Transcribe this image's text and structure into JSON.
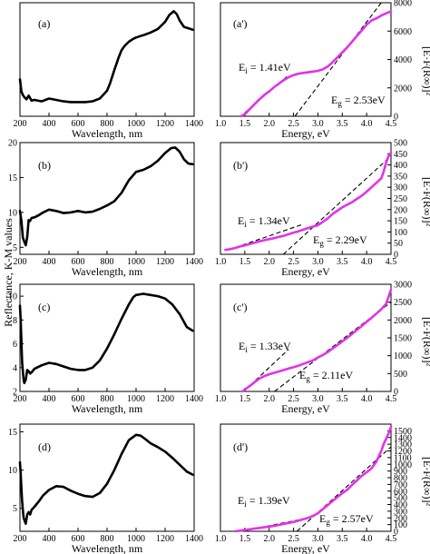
{
  "figure": {
    "left_y_title": "Reflectance, K-M values",
    "right_y_title": "[E·F(R∞)]²"
  },
  "chart_data": [
    {
      "id": "a",
      "type": "line",
      "label": "(a)",
      "xlabel": "Wavelength, nm",
      "ylabel": "",
      "xlim": [
        200,
        1400
      ],
      "ylim": [
        0,
        16
      ],
      "xticks": [
        200,
        400,
        600,
        800,
        1000,
        1200,
        1400
      ],
      "yticks": [],
      "series": [
        {
          "color": "#000000",
          "x": [
            200,
            210,
            220,
            230,
            245,
            260,
            280,
            300,
            350,
            400,
            450,
            500,
            550,
            600,
            650,
            700,
            750,
            800,
            820,
            850,
            880,
            900,
            920,
            950,
            980,
            1000,
            1030,
            1060,
            1100,
            1150,
            1200,
            1230,
            1260,
            1280,
            1300,
            1330,
            1360,
            1390
          ],
          "y": [
            5.2,
            3.5,
            3.0,
            2.7,
            2.4,
            2.9,
            2.2,
            2.3,
            2.1,
            2.5,
            2.3,
            2.1,
            2.0,
            2.0,
            2.0,
            2.1,
            2.5,
            3.6,
            4.6,
            6.5,
            8.3,
            9.3,
            9.9,
            10.5,
            10.9,
            11.1,
            11.3,
            11.5,
            11.8,
            12.3,
            13.3,
            14.3,
            14.8,
            14.4,
            13.5,
            12.6,
            12.4,
            12.2
          ]
        }
      ]
    },
    {
      "id": "a2",
      "type": "line",
      "label": "(a')",
      "xlabel": "Energy, eV",
      "ylabel": "",
      "xlim": [
        1.0,
        4.5
      ],
      "ylim": [
        0,
        8000
      ],
      "xticks": [
        1.0,
        1.5,
        2.0,
        2.5,
        3.0,
        3.5,
        4.0,
        4.5
      ],
      "yticks": [
        0,
        2000,
        4000,
        6000,
        8000
      ],
      "series": [
        {
          "color": "#e233e8",
          "x": [
            1.42,
            1.5,
            1.6,
            1.7,
            1.8,
            1.9,
            2.0,
            2.1,
            2.2,
            2.3,
            2.4,
            2.5,
            2.6,
            2.7,
            2.8,
            2.9,
            3.0,
            3.1,
            3.2,
            3.3,
            3.4,
            3.5,
            3.6,
            3.7,
            3.8,
            3.9,
            4.0,
            4.1,
            4.2,
            4.3,
            4.4,
            4.5
          ],
          "y": [
            0,
            150,
            500,
            850,
            1200,
            1500,
            1750,
            2050,
            2300,
            2550,
            2750,
            2900,
            3000,
            3050,
            3100,
            3150,
            3200,
            3300,
            3500,
            3800,
            4150,
            4500,
            4850,
            5250,
            5650,
            6050,
            6450,
            6750,
            6900,
            7100,
            7250,
            7400
          ]
        }
      ],
      "fit_lines": [
        {
          "x": [
            1.5,
            2.4
          ],
          "y": [
            250,
            2900
          ]
        },
        {
          "x": [
            2.53,
            4.3
          ],
          "y": [
            0,
            8000
          ]
        }
      ],
      "annotations": [
        {
          "text": "E",
          "sub": "i",
          "rest": " = 1.41eV"
        },
        {
          "text": "E",
          "sub": "g",
          "rest": " = 2.53eV"
        }
      ]
    },
    {
      "id": "b",
      "type": "line",
      "label": "(b)",
      "xlabel": "Wavelength, nm",
      "ylabel": "",
      "xlim": [
        200,
        1400
      ],
      "ylim": [
        4,
        20
      ],
      "xticks": [
        200,
        400,
        600,
        800,
        1000,
        1200,
        1400
      ],
      "yticks": [
        5,
        10,
        15,
        20
      ],
      "series": [
        {
          "color": "#000000",
          "x": [
            200,
            210,
            220,
            230,
            240,
            250,
            260,
            270,
            280,
            300,
            330,
            360,
            400,
            450,
            500,
            550,
            600,
            650,
            700,
            750,
            800,
            850,
            900,
            950,
            1000,
            1050,
            1100,
            1150,
            1200,
            1240,
            1270,
            1300,
            1330,
            1360,
            1390
          ],
          "y": [
            10.2,
            8.8,
            6.4,
            5.8,
            5.3,
            6.5,
            8.9,
            8.8,
            9.2,
            9.3,
            9.6,
            10.0,
            10.4,
            10.2,
            9.9,
            10.0,
            10.2,
            10.0,
            10.1,
            10.5,
            11.0,
            11.6,
            12.8,
            14.6,
            15.8,
            16.1,
            16.6,
            17.4,
            18.5,
            19.2,
            19.3,
            18.7,
            17.6,
            17.0,
            16.9
          ]
        }
      ]
    },
    {
      "id": "b2",
      "type": "line",
      "label": "(b')",
      "xlabel": "Energy, eV",
      "ylabel": "",
      "xlim": [
        1.0,
        4.5
      ],
      "ylim": [
        0,
        500
      ],
      "xticks": [
        1.0,
        1.5,
        2.0,
        2.5,
        3.0,
        3.5,
        4.0,
        4.5
      ],
      "yticks": [
        0,
        50,
        100,
        150,
        200,
        250,
        300,
        350,
        400,
        450,
        500
      ],
      "series": [
        {
          "color": "#e233e8",
          "x": [
            1.1,
            1.2,
            1.3,
            1.4,
            1.5,
            1.6,
            1.7,
            1.8,
            1.9,
            2.0,
            2.1,
            2.2,
            2.3,
            2.4,
            2.5,
            2.6,
            2.7,
            2.8,
            2.9,
            3.0,
            3.1,
            3.2,
            3.3,
            3.4,
            3.5,
            3.6,
            3.7,
            3.8,
            3.9,
            4.0,
            4.1,
            4.2,
            4.3,
            4.35,
            4.4,
            4.45,
            4.5
          ],
          "y": [
            20,
            23,
            28,
            35,
            40,
            46,
            52,
            58,
            63,
            68,
            72,
            78,
            83,
            90,
            97,
            103,
            110,
            118,
            124,
            130,
            145,
            160,
            180,
            195,
            210,
            222,
            233,
            248,
            262,
            280,
            300,
            320,
            340,
            370,
            410,
            440,
            455
          ]
        }
      ],
      "fit_lines": [
        {
          "x": [
            1.3,
            2.7
          ],
          "y": [
            30,
            135
          ]
        },
        {
          "x": [
            2.29,
            4.5
          ],
          "y": [
            0,
            440
          ]
        }
      ],
      "annotations": [
        {
          "text": "E",
          "sub": "i",
          "rest": " = 1.34eV"
        },
        {
          "text": "E",
          "sub": "g",
          "rest": " = 2.29eV"
        }
      ]
    },
    {
      "id": "c",
      "type": "line",
      "label": "(c)",
      "xlabel": "Wavelength, nm",
      "ylabel": "",
      "xlim": [
        200,
        1400
      ],
      "ylim": [
        2,
        11
      ],
      "xticks": [
        200,
        400,
        600,
        800,
        1000,
        1200,
        1400
      ],
      "yticks": [
        2,
        4,
        6,
        8,
        10
      ],
      "series": [
        {
          "color": "#000000",
          "x": [
            200,
            205,
            210,
            215,
            220,
            225,
            230,
            240,
            250,
            260,
            270,
            280,
            300,
            350,
            400,
            450,
            500,
            550,
            600,
            650,
            700,
            750,
            800,
            850,
            900,
            950,
            980,
            1000,
            1050,
            1100,
            1150,
            1200,
            1250,
            1300,
            1350,
            1390
          ],
          "y": [
            9.2,
            8.0,
            6.2,
            4.4,
            3.7,
            3.0,
            2.7,
            3.0,
            3.8,
            3.7,
            3.5,
            3.6,
            3.9,
            4.2,
            4.4,
            4.3,
            4.1,
            3.9,
            3.8,
            3.8,
            4.0,
            4.6,
            5.6,
            6.8,
            8.1,
            9.3,
            9.9,
            10.1,
            10.2,
            10.1,
            10.0,
            9.8,
            9.3,
            8.5,
            7.4,
            7.1
          ]
        }
      ]
    },
    {
      "id": "c2",
      "type": "line",
      "label": "(c')",
      "xlabel": "Energy, eV",
      "ylabel": "",
      "xlim": [
        1.0,
        4.5
      ],
      "ylim": [
        0,
        3000
      ],
      "xticks": [
        1.0,
        1.5,
        2.0,
        2.5,
        3.0,
        3.5,
        4.0,
        4.5
      ],
      "yticks": [
        0,
        500,
        1000,
        1500,
        2000,
        2500,
        3000
      ],
      "series": [
        {
          "color": "#e233e8",
          "x": [
            1.45,
            1.5,
            1.6,
            1.7,
            1.8,
            1.9,
            2.0,
            2.1,
            2.2,
            2.3,
            2.4,
            2.5,
            2.6,
            2.7,
            2.8,
            2.9,
            3.0,
            3.1,
            3.2,
            3.3,
            3.4,
            3.5,
            3.6,
            3.7,
            3.8,
            3.9,
            4.0,
            4.1,
            4.2,
            4.3,
            4.4,
            4.45,
            4.5
          ],
          "y": [
            0,
            50,
            150,
            260,
            360,
            430,
            480,
            520,
            560,
            600,
            640,
            680,
            720,
            770,
            820,
            870,
            950,
            1020,
            1100,
            1200,
            1300,
            1400,
            1500,
            1610,
            1720,
            1830,
            1950,
            2060,
            2180,
            2300,
            2450,
            2650,
            2850
          ]
        }
      ],
      "fit_lines": [
        {
          "x": [
            1.5,
            2.4
          ],
          "y": [
            30,
            1180
          ]
        },
        {
          "x": [
            2.11,
            4.5
          ],
          "y": [
            0,
            2500
          ]
        }
      ],
      "annotations": [
        {
          "text": "E",
          "sub": "i",
          "rest": " = 1.33eV"
        },
        {
          "text": "E",
          "sub": "g",
          "rest": " = 2.11eV"
        }
      ]
    },
    {
      "id": "d",
      "type": "line",
      "label": "(d)",
      "xlabel": "Wavelength, nm",
      "ylabel": "",
      "xlim": [
        200,
        1400
      ],
      "ylim": [
        2,
        16
      ],
      "xticks": [
        200,
        400,
        600,
        800,
        1000,
        1200,
        1400
      ],
      "yticks": [
        5,
        10,
        15
      ],
      "series": [
        {
          "color": "#000000",
          "x": [
            200,
            205,
            210,
            215,
            220,
            225,
            230,
            240,
            250,
            260,
            270,
            280,
            300,
            330,
            360,
            400,
            450,
            500,
            550,
            600,
            650,
            700,
            750,
            800,
            850,
            900,
            950,
            1000,
            1030,
            1060,
            1100,
            1150,
            1200,
            1250,
            1300,
            1350,
            1390
          ],
          "y": [
            11.0,
            9.5,
            7.6,
            5.9,
            4.8,
            3.8,
            3.5,
            3.0,
            4.2,
            4.5,
            4.2,
            4.8,
            5.2,
            5.9,
            6.7,
            7.4,
            7.9,
            7.8,
            7.3,
            6.9,
            6.6,
            6.5,
            7.0,
            8.2,
            10.0,
            12.1,
            13.9,
            14.6,
            14.5,
            14.1,
            13.5,
            13.0,
            12.4,
            11.6,
            10.7,
            9.8,
            9.4
          ]
        }
      ]
    },
    {
      "id": "d2",
      "type": "line",
      "label": "(d')",
      "xlabel": "Energy, eV",
      "ylabel": "",
      "xlim": [
        1.0,
        4.5
      ],
      "ylim": [
        0,
        1600
      ],
      "xticks": [
        1.0,
        1.5,
        2.0,
        2.5,
        3.0,
        3.5,
        4.0,
        4.5
      ],
      "yticks": [
        0,
        100,
        200,
        300,
        400,
        500,
        600,
        700,
        800,
        900,
        1000,
        1100,
        1200,
        1300,
        1400,
        1500
      ],
      "series": [
        {
          "color": "#e233e8",
          "x": [
            1.3,
            1.4,
            1.5,
            1.6,
            1.7,
            1.8,
            1.9,
            2.0,
            2.1,
            2.2,
            2.3,
            2.4,
            2.5,
            2.6,
            2.7,
            2.8,
            2.9,
            3.0,
            3.1,
            3.2,
            3.3,
            3.4,
            3.5,
            3.6,
            3.7,
            3.8,
            3.9,
            4.0,
            4.1,
            4.2,
            4.3,
            4.35,
            4.4,
            4.45,
            4.5
          ],
          "y": [
            0,
            10,
            20,
            30,
            40,
            50,
            60,
            70,
            80,
            95,
            110,
            125,
            140,
            160,
            180,
            200,
            230,
            270,
            330,
            390,
            450,
            510,
            570,
            620,
            690,
            760,
            830,
            880,
            940,
            1040,
            1200,
            1300,
            1380,
            1460,
            1560
          ]
        }
      ],
      "fit_lines": [
        {
          "x": [
            1.5,
            2.6
          ],
          "y": [
            10,
            170
          ]
        },
        {
          "x": [
            2.57,
            4.5
          ],
          "y": [
            0,
            1260
          ]
        }
      ],
      "annotations": [
        {
          "text": "E",
          "sub": "i",
          "rest": " = 1.39eV"
        },
        {
          "text": "E",
          "sub": "g",
          "rest": " = 2.57eV"
        }
      ]
    }
  ]
}
